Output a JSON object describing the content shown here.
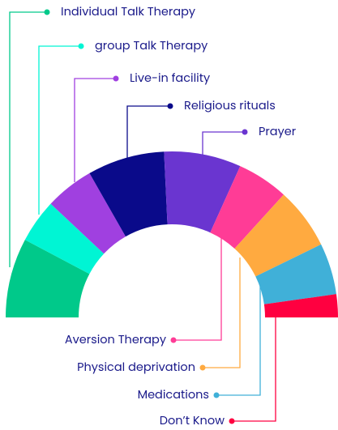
{
  "chart_data": {
    "type": "pie",
    "categories": [
      "Individual Talk Therapy",
      "group Talk Therapy",
      "Live-in facility",
      "Religious rituals",
      "Prayer",
      "Aversion Therapy",
      "Physical deprivation",
      "Medications",
      "Don’t Know"
    ],
    "values": [
      15.5,
      8.5,
      9.5,
      15,
      15,
      10,
      12,
      10,
      4.5
    ],
    "colors": [
      "#00c98a",
      "#00f5d4",
      "#a040e0",
      "#0a0a8a",
      "#6a35d0",
      "#ff3c96",
      "#ffaa40",
      "#40b0d8",
      "#ff0040"
    ]
  }
}
